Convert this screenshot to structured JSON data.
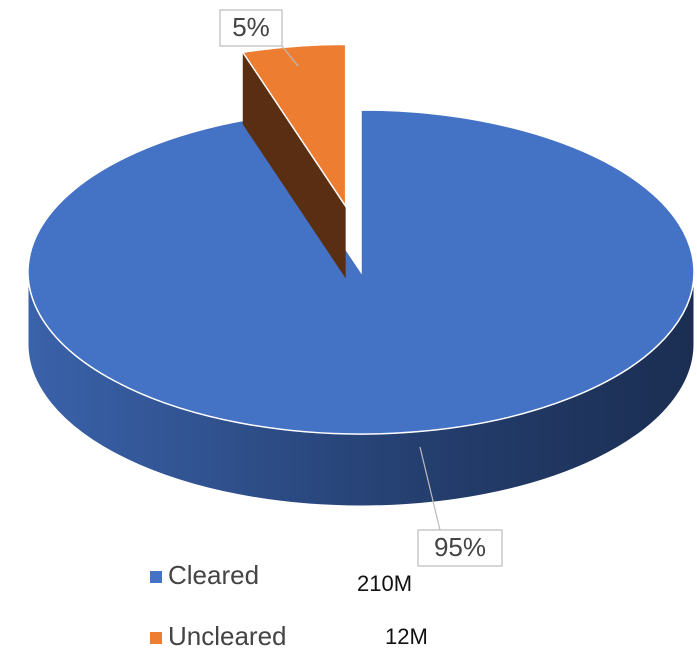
{
  "chart_data": {
    "type": "pie",
    "categories": [
      "Cleared",
      "Uncleared"
    ],
    "values": [
      95,
      5
    ],
    "value_labels": [
      "95%",
      "5%"
    ],
    "legend_values": [
      "210M",
      "12M"
    ],
    "colors": [
      "#4472c4",
      "#ed7d31"
    ]
  }
}
